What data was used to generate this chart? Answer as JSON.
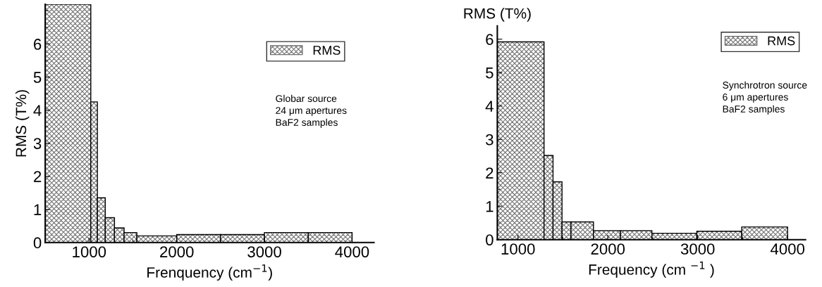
{
  "chart_data": [
    {
      "type": "histogram",
      "xlabel": "Frenquency (cm$^{−1}$)",
      "ylabel": "RMS (T%)",
      "bins": [
        500,
        1020,
        1095,
        1185,
        1290,
        1400,
        1545,
        2000,
        2500,
        3000,
        3500,
        4000
      ],
      "series": [
        {
          "name": "RMS",
          "color": "#707070",
          "values": [
            7.2,
            4.25,
            1.35,
            0.75,
            0.44,
            0.3,
            0.2,
            0.24,
            0.24,
            0.3,
            0.3
          ]
        }
      ],
      "xlim": [
        500,
        4250
      ],
      "xticks": [
        1000,
        2000,
        3000,
        4000
      ],
      "ylim": [
        0,
        7.2
      ],
      "yticks": [
        0,
        1,
        2,
        3,
        4,
        5,
        6
      ],
      "legend": "top right",
      "grid": false,
      "annotations": [
        "Globar source\n24 μm apertures\nBaF2 samples"
      ]
    },
    {
      "type": "histogram",
      "xlabel": "Frequency (cm $^{−1}$ )",
      "ylabel": "RMS (T%)",
      "bins": [
        770,
        1290,
        1390,
        1490,
        1590,
        1840,
        2140,
        2490,
        2990,
        3490,
        4000
      ],
      "series": [
        {
          "name": "RMS",
          "color": "#707070",
          "values": [
            5.92,
            2.52,
            1.73,
            0.53,
            0.53,
            0.27,
            0.27,
            0.19,
            0.25,
            0.38
          ]
        }
      ],
      "xlim": [
        770,
        4200
      ],
      "xticks": [
        1000,
        2000,
        3000,
        4000
      ],
      "ylim": [
        0,
        6.4
      ],
      "yticks": [
        0,
        1,
        2,
        3,
        4,
        5,
        6
      ],
      "legend": "top right",
      "grid": false,
      "annotations": [
        "Synchrotron source\n6 μm apertures\nBaF2 samples"
      ]
    }
  ]
}
